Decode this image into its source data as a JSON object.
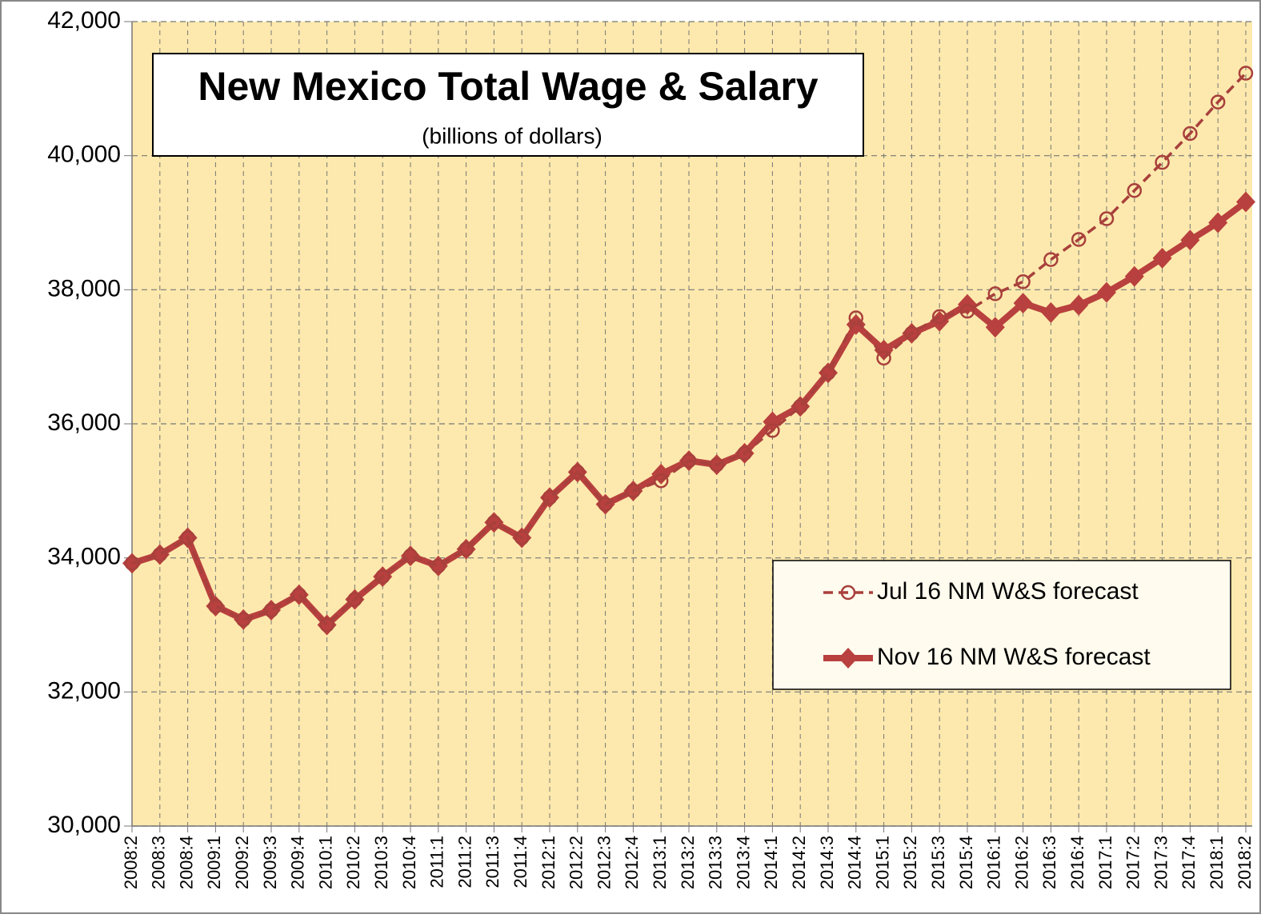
{
  "chart_data": {
    "type": "line",
    "title": "New Mexico Total Wage & Salary",
    "subtitle": "(billions of dollars)",
    "categories": [
      "2008:2",
      "2008:3",
      "2008:4",
      "2009:1",
      "2009:2",
      "2009:3",
      "2009:4",
      "2010:1",
      "2010:2",
      "2010:3",
      "2010:4",
      "2011:1",
      "2011:2",
      "2011:3",
      "2011:4",
      "2012:1",
      "2012:2",
      "2012:3",
      "2012:4",
      "2013:1",
      "2013:2",
      "2013:3",
      "2013:4",
      "2014:1",
      "2014:2",
      "2014:3",
      "2014:4",
      "2015:1",
      "2015:2",
      "2015:3",
      "2015:4",
      "2016:1",
      "2016:2",
      "2016:3",
      "2016:4",
      "2017:1",
      "2017:2",
      "2017:3",
      "2017:4",
      "2018:1",
      "2018:2"
    ],
    "series": [
      {
        "name": "Jul 16 NM W&S forecast",
        "color": "#a8403c",
        "line_style": "dashed",
        "marker": "circle",
        "values": [
          33920,
          34050,
          34300,
          33280,
          33080,
          33220,
          33450,
          33000,
          33380,
          33720,
          34030,
          33880,
          34130,
          34530,
          34300,
          34900,
          35280,
          34800,
          35000,
          35150,
          35450,
          35390,
          35560,
          35900,
          36260,
          36760,
          37580,
          36980,
          37350,
          37600,
          37680,
          37940,
          38120,
          38450,
          38750,
          39060,
          39480,
          39900,
          40330,
          40800,
          41230
        ]
      },
      {
        "name": "Nov 16 NM W&S forecast",
        "color": "#b8403e",
        "line_style": "solid",
        "marker": "diamond",
        "values": [
          33920,
          34050,
          34300,
          33280,
          33080,
          33220,
          33450,
          33000,
          33380,
          33720,
          34030,
          33880,
          34130,
          34530,
          34300,
          34900,
          35280,
          34800,
          35000,
          35250,
          35450,
          35390,
          35560,
          36030,
          36260,
          36760,
          37480,
          37100,
          37350,
          37530,
          37780,
          37440,
          37800,
          37660,
          37770,
          37960,
          38200,
          38470,
          38740,
          39000,
          39310
        ]
      }
    ],
    "ylim": [
      30000,
      42000
    ],
    "yticks": [
      {
        "value": 30000,
        "label": "30,000"
      },
      {
        "value": 32000,
        "label": "32,000"
      },
      {
        "value": 34000,
        "label": "34,000"
      },
      {
        "value": 36000,
        "label": "36,000"
      },
      {
        "value": 38000,
        "label": "38,000"
      },
      {
        "value": 40000,
        "label": "40,000"
      },
      {
        "value": 42000,
        "label": "42,000"
      }
    ],
    "grid": true,
    "legend": "lower-right",
    "background": "#fde9ad"
  }
}
